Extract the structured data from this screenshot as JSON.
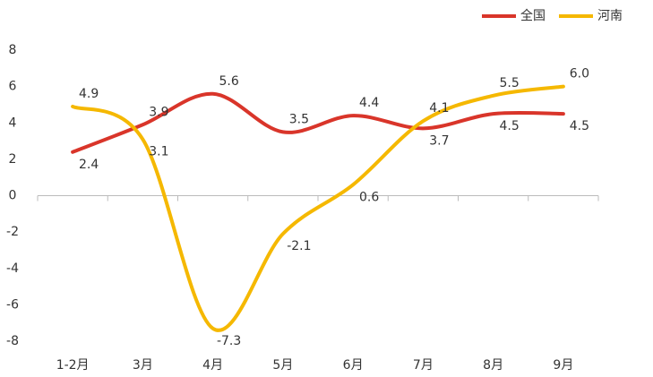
{
  "chart_data": {
    "type": "line",
    "categories": [
      "1-2月",
      "3月",
      "4月",
      "5月",
      "6月",
      "7月",
      "8月",
      "9月"
    ],
    "series": [
      {
        "name": "全国",
        "color": "#d9352a",
        "values": [
          2.4,
          3.9,
          5.6,
          3.5,
          4.4,
          3.7,
          4.5,
          4.5
        ]
      },
      {
        "name": "河南",
        "color": "#f5b800",
        "values": [
          4.9,
          3.1,
          -7.3,
          -2.1,
          0.6,
          4.1,
          5.5,
          6.0
        ],
        "value_labels": [
          "4.9",
          "3.1",
          "-7.3",
          "-2.1",
          "0.6",
          "4.1",
          "5.5",
          "6.0"
        ]
      }
    ],
    "ylim": [
      -8,
      8
    ],
    "yticks": [
      -8,
      -6,
      -4,
      -2,
      0,
      2,
      4,
      6,
      8
    ],
    "legend": "top-right"
  }
}
